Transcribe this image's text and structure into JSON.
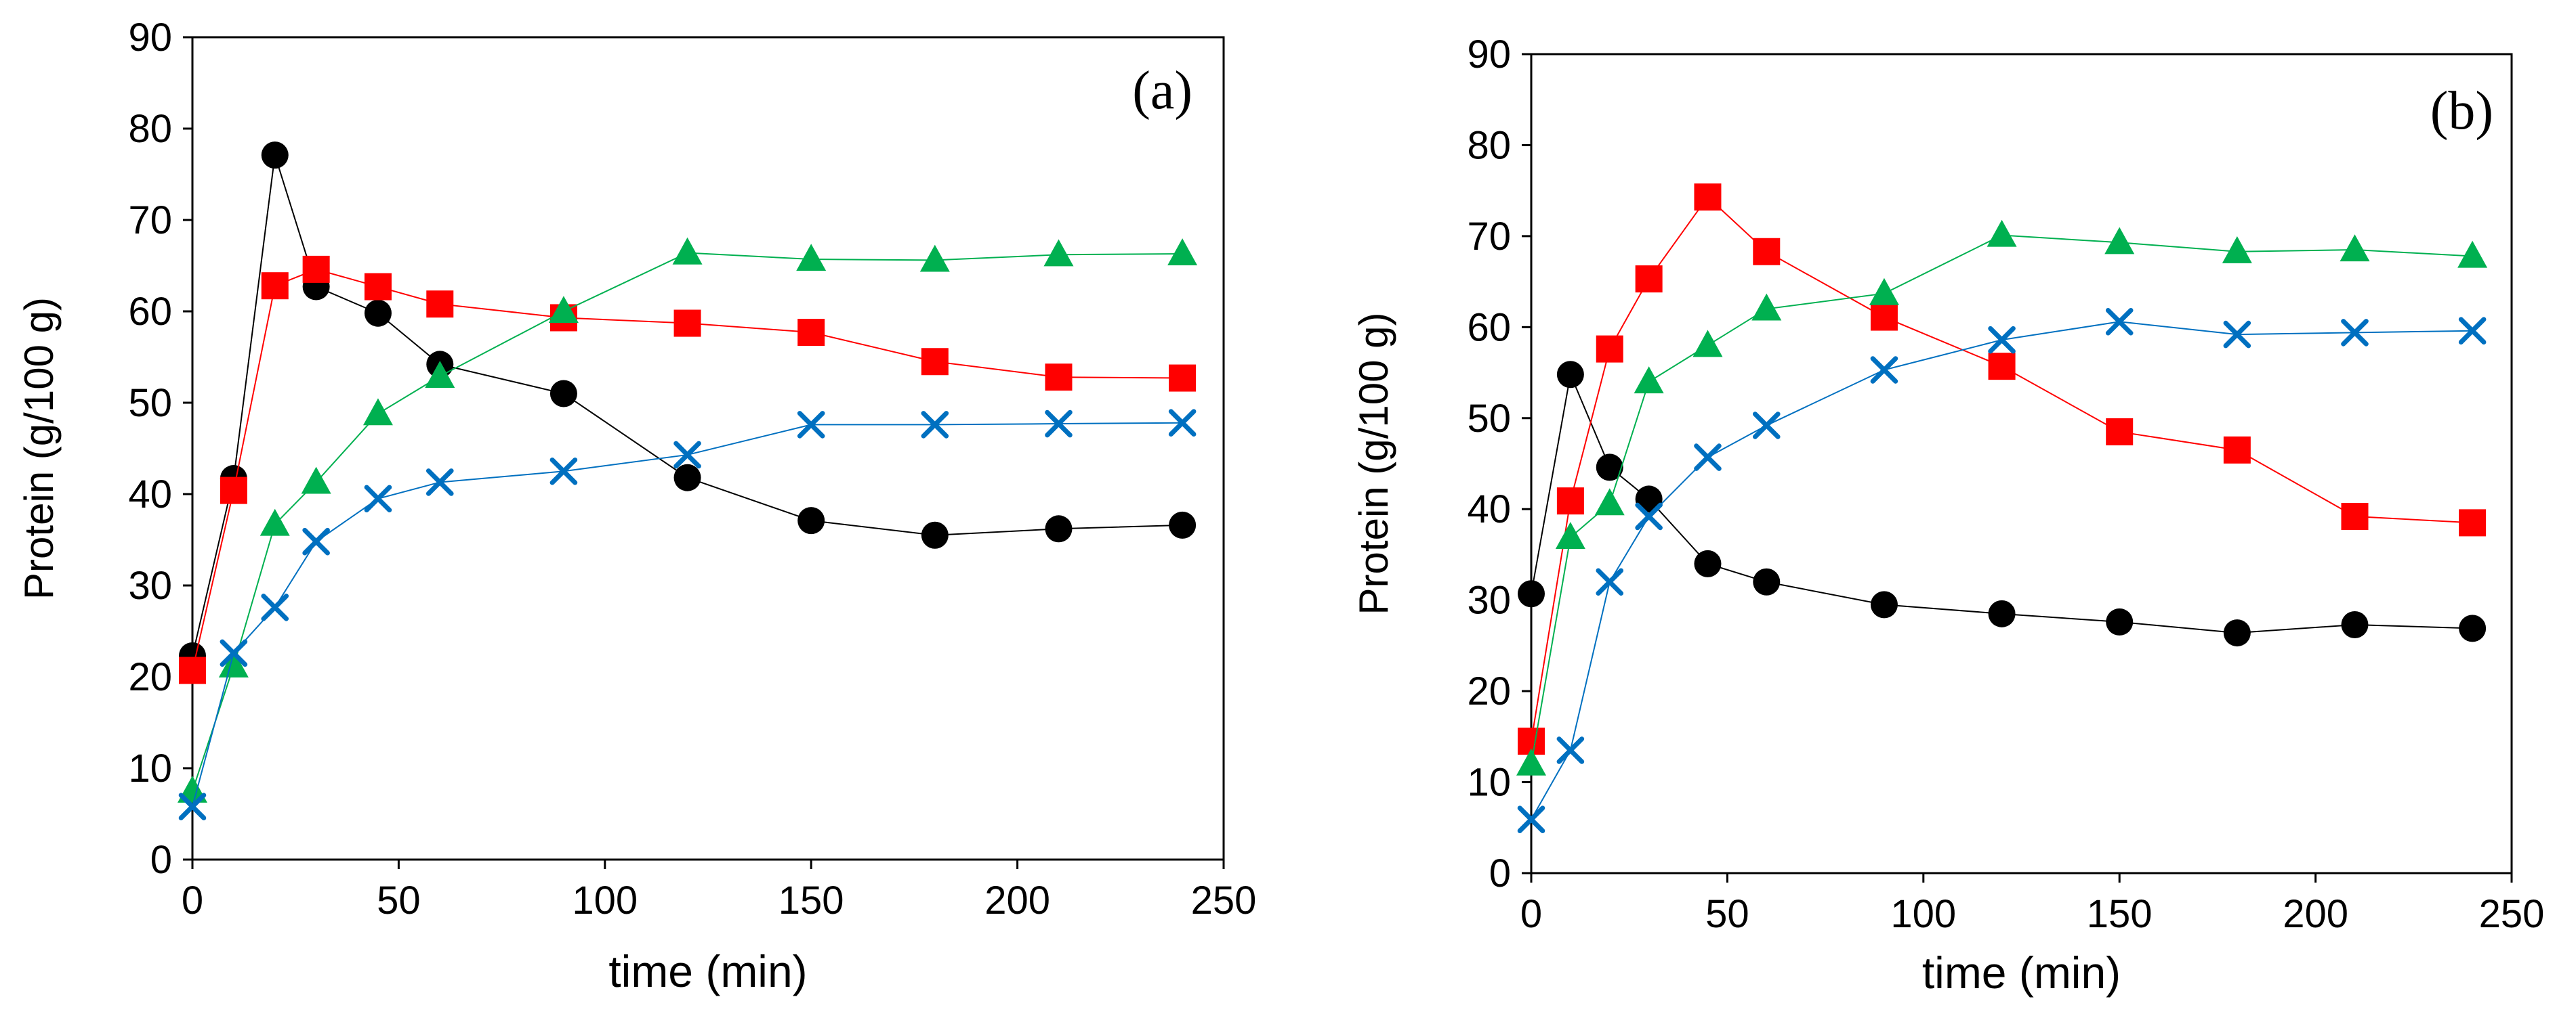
{
  "chart_data": [
    {
      "type": "line",
      "panel_label": "(a)",
      "xlabel": "time (min)",
      "ylabel": "Protein (g/100 g)",
      "xlim": [
        0,
        250
      ],
      "ylim": [
        0,
        90
      ],
      "xticks": [
        0,
        50,
        100,
        150,
        200,
        250
      ],
      "yticks": [
        0,
        10,
        20,
        30,
        40,
        50,
        60,
        70,
        80,
        90
      ],
      "grid": false,
      "series": [
        {
          "name": "circle-black",
          "marker": "circle",
          "color": "#000000",
          "x": [
            0,
            10,
            20,
            30,
            45,
            60,
            90,
            120,
            150,
            180,
            210,
            240
          ],
          "y": [
            22.3,
            41.7,
            77.1,
            62.7,
            59.8,
            54.2,
            51.0,
            41.8,
            37.1,
            35.5,
            36.2,
            36.6
          ]
        },
        {
          "name": "square-red",
          "marker": "square",
          "color": "#ff0000",
          "x": [
            0,
            10,
            20,
            30,
            45,
            60,
            90,
            120,
            150,
            180,
            210,
            240
          ],
          "y": [
            20.7,
            40.4,
            62.8,
            64.6,
            62.7,
            60.8,
            59.3,
            58.7,
            57.7,
            54.5,
            52.8,
            52.7
          ]
        },
        {
          "name": "triangle-green",
          "marker": "triangle",
          "color": "#00b050",
          "x": [
            0,
            10,
            20,
            30,
            45,
            60,
            90,
            120,
            150,
            180,
            210,
            240
          ],
          "y": [
            7.5,
            21.2,
            36.7,
            41.3,
            48.8,
            52.9,
            60.0,
            66.4,
            65.7,
            65.6,
            66.2,
            66.3
          ]
        },
        {
          "name": "cross-blue",
          "marker": "x",
          "color": "#0070c0",
          "x": [
            0,
            10,
            20,
            30,
            45,
            60,
            90,
            120,
            150,
            180,
            210,
            240
          ],
          "y": [
            5.8,
            22.6,
            27.6,
            34.8,
            39.5,
            41.3,
            42.5,
            44.3,
            47.6,
            47.6,
            47.7,
            47.8
          ]
        }
      ]
    },
    {
      "type": "line",
      "panel_label": "(b)",
      "xlabel": "time (min)",
      "ylabel": "Protein (g/100 g)",
      "xlim": [
        0,
        250
      ],
      "ylim": [
        0,
        90
      ],
      "xticks": [
        0,
        50,
        100,
        150,
        200,
        250
      ],
      "yticks": [
        0,
        10,
        20,
        30,
        40,
        50,
        60,
        70,
        80,
        90
      ],
      "grid": false,
      "series": [
        {
          "name": "circle-black",
          "marker": "circle",
          "color": "#000000",
          "x": [
            0,
            10,
            20,
            30,
            45,
            60,
            90,
            120,
            150,
            180,
            210,
            240
          ],
          "y": [
            30.7,
            54.8,
            44.6,
            41.1,
            34.0,
            32.0,
            29.5,
            28.5,
            27.6,
            26.4,
            27.3,
            26.9
          ]
        },
        {
          "name": "square-red",
          "marker": "square",
          "color": "#ff0000",
          "x": [
            0,
            10,
            20,
            30,
            45,
            60,
            90,
            120,
            150,
            180,
            210,
            240
          ],
          "y": [
            14.5,
            40.9,
            57.6,
            65.3,
            74.3,
            68.3,
            61.1,
            55.7,
            48.5,
            46.5,
            39.2,
            38.5
          ]
        },
        {
          "name": "triangle-green",
          "marker": "triangle",
          "color": "#00b050",
          "x": [
            0,
            10,
            20,
            30,
            45,
            60,
            90,
            120,
            150,
            180,
            210,
            240
          ],
          "y": [
            12.0,
            36.9,
            40.6,
            54.0,
            58.0,
            62.0,
            63.7,
            70.1,
            69.3,
            68.3,
            68.5,
            67.8
          ]
        },
        {
          "name": "cross-blue",
          "marker": "x",
          "color": "#0070c0",
          "x": [
            0,
            10,
            20,
            30,
            45,
            60,
            90,
            120,
            150,
            180,
            210,
            240
          ],
          "y": [
            5.9,
            13.5,
            32.0,
            39.2,
            45.7,
            49.2,
            55.3,
            58.6,
            60.6,
            59.2,
            59.4,
            59.6
          ]
        }
      ]
    }
  ]
}
